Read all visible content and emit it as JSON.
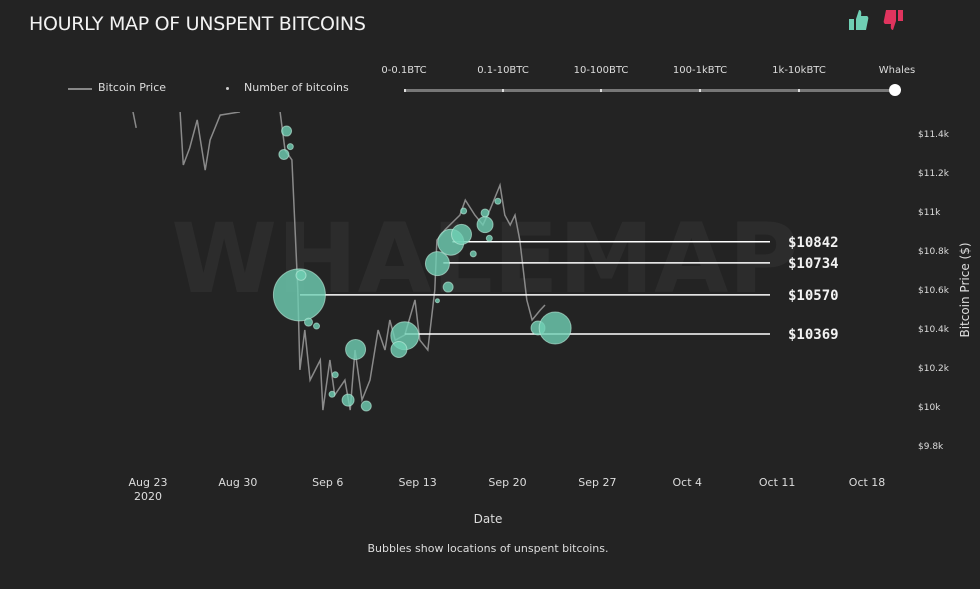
{
  "header": {
    "title": "HOURLY MAP OF UNSPENT BITCOINS",
    "thumbs_up_color": "#6fcfb4",
    "thumbs_down_color": "#e0345e"
  },
  "legend": {
    "price_label": "Bitcoin Price",
    "bubbles_label": "Number of bitcoins"
  },
  "slider": {
    "labels": [
      "0-0.1BTC",
      "0.1-10BTC",
      "10-100BTC",
      "100-1kBTC",
      "1k-10kBTC",
      "Whales"
    ],
    "selected": "Whales"
  },
  "watermark": "WHALEMAP",
  "caption": "Bubbles show locations of unspent bitcoins.",
  "chart_data": {
    "type": "line",
    "xlabel": "Date",
    "ylabel": "Bitcoin Price ($)",
    "x_ticks": [
      "Aug 23",
      "Aug 30",
      "Sep 6",
      "Sep 13",
      "Sep 20",
      "Sep 27",
      "Oct 4",
      "Oct 11",
      "Oct 18"
    ],
    "x_tick_year": "2020",
    "x_range": [
      "2020-08-21",
      "2020-10-19"
    ],
    "y_ticks": [
      "$11.4k",
      "$11.2k",
      "$11k",
      "$10.8k",
      "$10.6k",
      "$10.4k",
      "$10.2k",
      "$10k",
      "$9.8k"
    ],
    "y_tick_values": [
      11400,
      11200,
      11000,
      10800,
      10600,
      10400,
      10200,
      10000,
      9800
    ],
    "ylim": [
      9750,
      11500
    ],
    "grid": false,
    "colors": {
      "price": "#8a8a8a",
      "bubble": "#6fcfb4",
      "level": "#ffffff"
    },
    "series": [
      {
        "name": "Bitcoin Price",
        "segments": [
          [
            [
              "2020-08-21T20:00",
              11508
            ],
            [
              "2020-08-22T02:00",
              11426
            ]
          ],
          [
            [
              "2020-08-25T12:00",
              11508
            ],
            [
              "2020-08-25T18:00",
              11236
            ],
            [
              "2020-08-26T06:00",
              11323
            ],
            [
              "2020-08-26T20:00",
              11467
            ],
            [
              "2020-08-27T11:00",
              11210
            ],
            [
              "2020-08-27T20:00",
              11364
            ],
            [
              "2020-08-28T15:00",
              11492
            ],
            [
              "2020-08-30T04:00",
              11508
            ]
          ],
          [
            [
              "2020-09-02T07:00",
              11508
            ],
            [
              "2020-09-02T16:00",
              11313
            ],
            [
              "2020-09-03T05:00",
              11262
            ],
            [
              "2020-09-03T11:00",
              10903
            ],
            [
              "2020-09-03T16:00",
              10595
            ],
            [
              "2020-09-03T20:00",
              10185
            ],
            [
              "2020-09-04T05:00",
              10390
            ],
            [
              "2020-09-04T15:00",
              10133
            ],
            [
              "2020-09-05T10:00",
              10236
            ],
            [
              "2020-09-05T15:00",
              9979
            ],
            [
              "2020-09-06T04:00",
              10236
            ],
            [
              "2020-09-06T13:00",
              10056
            ],
            [
              "2020-09-07T08:00",
              10133
            ],
            [
              "2020-09-07T18:00",
              9979
            ],
            [
              "2020-09-08T03:00",
              10287
            ],
            [
              "2020-09-08T16:00",
              10031
            ],
            [
              "2020-09-09T07:00",
              10133
            ],
            [
              "2020-09-09T22:00",
              10390
            ],
            [
              "2020-09-10T11:00",
              10287
            ],
            [
              "2020-09-10T20:00",
              10441
            ],
            [
              "2020-09-11T06:00",
              10338
            ],
            [
              "2020-09-12T00:00",
              10364
            ],
            [
              "2020-09-12T19:00",
              10544
            ],
            [
              "2020-09-13T04:00",
              10338
            ],
            [
              "2020-09-13T19:00",
              10287
            ],
            [
              "2020-09-14T08:00",
              10595
            ],
            [
              "2020-09-14T12:00",
              10851
            ],
            [
              "2020-09-15T03:00",
              10903
            ],
            [
              "2020-09-16T07:00",
              10979
            ],
            [
              "2020-09-16T17:00",
              11056
            ],
            [
              "2020-09-17T11:00",
              10979
            ],
            [
              "2020-09-18T02:00",
              10928
            ],
            [
              "2020-09-18T15:00",
              11005
            ],
            [
              "2020-09-19T10:00",
              11133
            ],
            [
              "2020-09-19T19:00",
              10979
            ],
            [
              "2020-09-20T05:00",
              10928
            ],
            [
              "2020-09-20T14:00",
              10979
            ],
            [
              "2020-09-20T23:00",
              10851
            ],
            [
              "2020-09-21T12:00",
              10544
            ],
            [
              "2020-09-21T22:00",
              10441
            ],
            [
              "2020-09-22T13:00",
              10492
            ],
            [
              "2020-09-22T22:00",
              10518
            ]
          ]
        ]
      },
      {
        "name": "Number of bitcoins",
        "type": "bubble",
        "points": [
          [
            "2020-09-02T19:00",
            11410,
            25
          ],
          [
            "2020-09-02T14:00",
            11290,
            25
          ],
          [
            "2020-09-03T02:00",
            11330,
            9
          ],
          [
            "2020-09-03T19:00",
            10570,
            676
          ],
          [
            "2020-09-03T22:00",
            10670,
            25
          ],
          [
            "2020-09-04T12:00",
            10430,
            16
          ],
          [
            "2020-09-05T03:00",
            10410,
            9
          ],
          [
            "2020-09-06T14:00",
            10160,
            9
          ],
          [
            "2020-09-06T08:00",
            10060,
            9
          ],
          [
            "2020-09-07T14:00,",
            10030,
            36
          ],
          [
            "2020-09-08T04:00",
            10290,
            100
          ],
          [
            "2020-09-09T00:00",
            10000,
            25
          ],
          [
            "2020-09-12T00:00",
            10360,
            196
          ],
          [
            "2020-09-11T13:00",
            10290,
            64
          ],
          [
            "2020-09-14T13:00",
            10730,
            144
          ],
          [
            "2020-09-15T09:00",
            10610,
            25
          ],
          [
            "2020-09-14T13:00",
            10540,
            4
          ],
          [
            "2020-09-15T14:00",
            10840,
            169
          ],
          [
            "2020-09-16T10:00",
            10880,
            100
          ],
          [
            "2020-09-18T06:00",
            10930,
            64
          ],
          [
            "2020-09-18T06:00",
            10990,
            16
          ],
          [
            "2020-09-16T14:00",
            11000,
            9
          ],
          [
            "2020-09-17T08:00",
            10780,
            9
          ],
          [
            "2020-09-19T06:00",
            11050,
            9
          ],
          [
            "2020-09-18T14:00",
            10860,
            9
          ],
          [
            "2020-09-22T09:00",
            10400,
            49
          ],
          [
            "2020-09-23T17:00",
            10400,
            256
          ]
        ]
      }
    ],
    "levels": [
      {
        "label": "$10842",
        "value": 10842,
        "start": "2020-09-15T17:00"
      },
      {
        "label": "$10734",
        "value": 10734,
        "start": "2020-09-15T00:00"
      },
      {
        "label": "$10570",
        "value": 10570,
        "start": "2020-09-03T20:00"
      },
      {
        "label": "$10369",
        "value": 10369,
        "start": "2020-09-12T00:00"
      }
    ]
  }
}
